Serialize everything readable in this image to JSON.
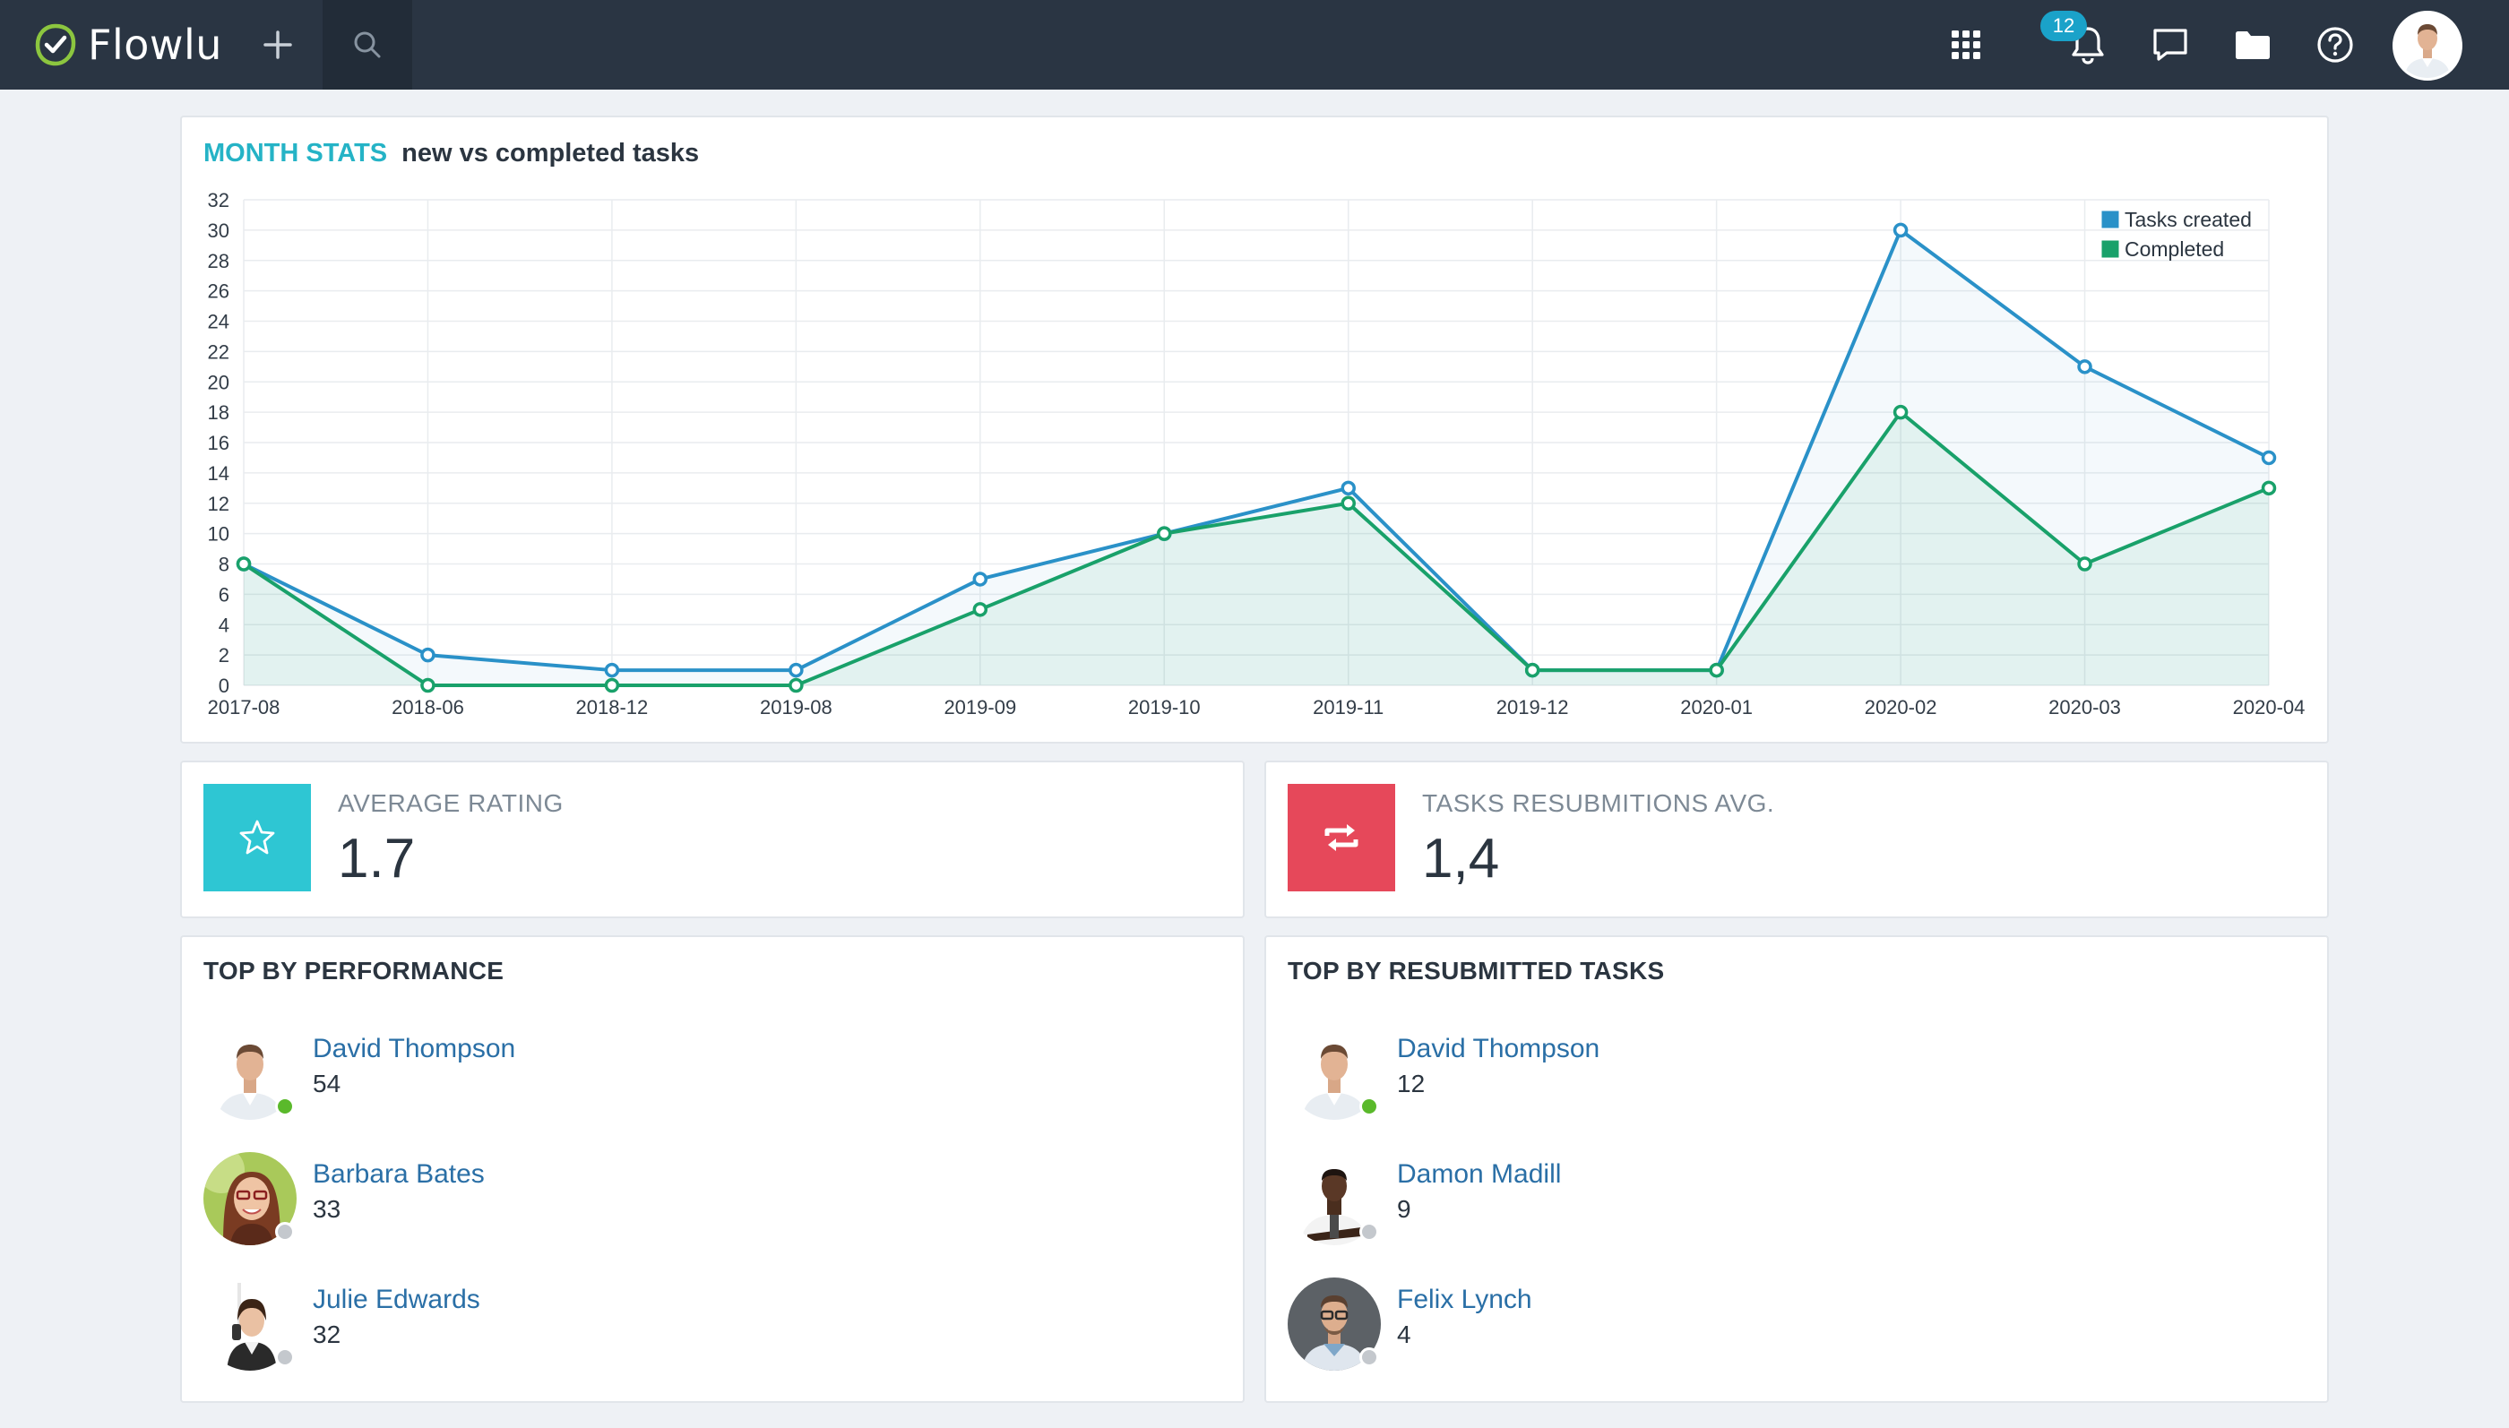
{
  "app": {
    "name": "Flowlu"
  },
  "topbar": {
    "notifications_count": "12",
    "icons": [
      "apps-grid-icon",
      "bell-icon",
      "chat-icon",
      "folder-icon",
      "help-icon"
    ]
  },
  "chart_card": {
    "title_accent": "MONTH STATS",
    "title_sub": "new vs completed tasks"
  },
  "chart_data": {
    "type": "line",
    "categories": [
      "2017-08",
      "2018-06",
      "2018-12",
      "2019-08",
      "2019-09",
      "2019-10",
      "2019-11",
      "2019-12",
      "2020-01",
      "2020-02",
      "2020-03",
      "2020-04"
    ],
    "series": [
      {
        "name": "Tasks created",
        "color": "#2a91c8",
        "values": [
          8,
          2,
          1,
          1,
          7,
          10,
          13,
          1,
          1,
          30,
          21,
          15
        ]
      },
      {
        "name": "Completed",
        "color": "#19a16a",
        "values": [
          8,
          0,
          0,
          0,
          5,
          10,
          12,
          1,
          1,
          18,
          8,
          13
        ]
      }
    ],
    "yticks": [
      0,
      2,
      4,
      6,
      8,
      10,
      12,
      14,
      16,
      18,
      20,
      22,
      24,
      26,
      28,
      30,
      32
    ],
    "ylim": [
      0,
      32
    ],
    "grid": true,
    "legend": "top-right",
    "title": "",
    "xlabel": "",
    "ylabel": ""
  },
  "stats": [
    {
      "label": "AVERAGE RATING",
      "value": "1.7",
      "color": "#2ec6d3",
      "icon": "star-icon"
    },
    {
      "label": "TASKS RESUBMITIONS AVG.",
      "value": "1,4",
      "color": "#e6485a",
      "icon": "repeat-icon"
    }
  ],
  "top_performance": {
    "title": "TOP BY PERFORMANCE",
    "people": [
      {
        "name": "David Thompson",
        "value": "54",
        "online": true
      },
      {
        "name": "Barbara Bates",
        "value": "33",
        "online": false
      },
      {
        "name": "Julie Edwards",
        "value": "32",
        "online": false
      }
    ]
  },
  "top_resubmitted": {
    "title": "TOP BY RESUBMITTED TASKS",
    "people": [
      {
        "name": "David Thompson",
        "value": "12",
        "online": true
      },
      {
        "name": "Damon Madill",
        "value": "9",
        "online": false
      },
      {
        "name": "Felix Lynch",
        "value": "4",
        "online": false
      }
    ]
  },
  "colors": {
    "online": "#5ab92b",
    "offline": "#c4c8cd",
    "link": "#2a6fa6",
    "accent": "#25b3c6"
  }
}
